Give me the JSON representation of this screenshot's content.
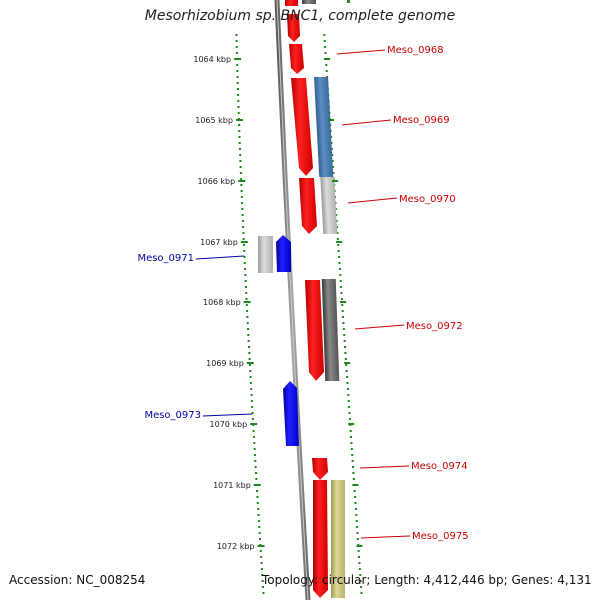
{
  "title": "Mesorhizobium sp. BNC1, complete genome",
  "footer": {
    "accession": "Accession: NC_008254",
    "summary": "Topology: circular; Length: 4,412,446 bp; Genes: 4,131"
  },
  "colors": {
    "forward_gene": "#ff0000",
    "reverse_gene": "#0000ff",
    "backbone": "#808080",
    "ruler": "#1a8a1a",
    "forward_label": "#cc0000",
    "reverse_label": "#0000aa"
  },
  "ruler": {
    "unit": "kbp",
    "ticks": [
      {
        "kbp": 1064,
        "label": "1064 kbp"
      },
      {
        "kbp": 1065,
        "label": "1065 kbp"
      },
      {
        "kbp": 1066,
        "label": "1066 kbp"
      },
      {
        "kbp": 1067,
        "label": "1067 kbp"
      },
      {
        "kbp": 1068,
        "label": "1068 kbp"
      },
      {
        "kbp": 1069,
        "label": "1069 kbp"
      },
      {
        "kbp": 1070,
        "label": "1070 kbp"
      },
      {
        "kbp": 1071,
        "label": "1071 kbp"
      },
      {
        "kbp": 1072,
        "label": "1072 kbp"
      }
    ]
  },
  "genes": [
    {
      "label": "Meso_0968",
      "strand": "forward"
    },
    {
      "label": "Meso_0969",
      "strand": "forward"
    },
    {
      "label": "Meso_0970",
      "strand": "forward"
    },
    {
      "label": "Meso_0971",
      "strand": "reverse"
    },
    {
      "label": "Meso_0972",
      "strand": "forward"
    },
    {
      "label": "Meso_0973",
      "strand": "reverse"
    },
    {
      "label": "Meso_0974",
      "strand": "forward"
    },
    {
      "label": "Meso_0975",
      "strand": "forward"
    }
  ]
}
